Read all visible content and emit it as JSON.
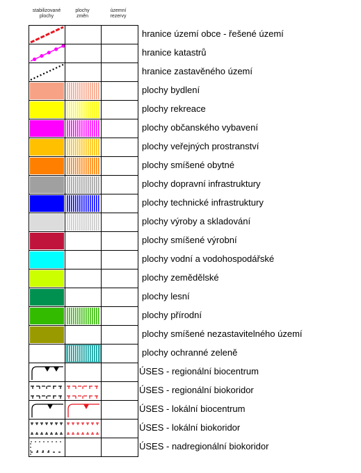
{
  "columns": [
    {
      "line1": "stabilizované",
      "line2": "plochy"
    },
    {
      "line1": "plochy",
      "line2": "změn"
    },
    {
      "line1": "územní",
      "line2": "rezervy"
    }
  ],
  "rows": [
    {
      "label": "hranice území obce - řešené území",
      "stab": {
        "type": "line",
        "color": "#e8151f",
        "style": "dash"
      },
      "change": null
    },
    {
      "label": "hranice katastrů",
      "stab": {
        "type": "line",
        "color": "#ff00ff",
        "style": "dots"
      },
      "change": null
    },
    {
      "label": "hranice zastavěného území",
      "stab": {
        "type": "line",
        "color": "#000000",
        "style": "dotted"
      },
      "change": null
    },
    {
      "label": "plochy bydlení",
      "stab": {
        "type": "fill",
        "color": "#f8a285"
      },
      "change": {
        "type": "stripe",
        "color": "#f8a285"
      }
    },
    {
      "label": "plochy rekreace",
      "stab": {
        "type": "fill",
        "color": "#ffff00"
      },
      "change": {
        "type": "stripe",
        "color": "#ffff00"
      }
    },
    {
      "label": "plochy občanského vybavení",
      "stab": {
        "type": "fill",
        "color": "#ff00ff"
      },
      "change": {
        "type": "stripe",
        "color": "#ff00ff"
      }
    },
    {
      "label": "plochy veřejných prostranství",
      "stab": {
        "type": "fill",
        "color": "#ffc000"
      },
      "change": {
        "type": "stripe",
        "color": "#ffc000"
      }
    },
    {
      "label": "plochy smíšené obytné",
      "stab": {
        "type": "fill",
        "color": "#ff8000"
      },
      "change": {
        "type": "stripe",
        "color": "#ff8000"
      }
    },
    {
      "label": "plochy dopravní infrastruktury",
      "stab": {
        "type": "fill",
        "color": "#a0a0a0"
      },
      "change": {
        "type": "stripe",
        "color": "#a0a0a0"
      }
    },
    {
      "label": "plochy technické infrastruktury",
      "stab": {
        "type": "fill",
        "color": "#0000ff"
      },
      "change": {
        "type": "stripe",
        "color": "#0000ff"
      }
    },
    {
      "label": "plochy výroby a skladování",
      "stab": {
        "type": "fill",
        "color": "#dcdcdc"
      },
      "change": {
        "type": "stripe",
        "color": "#c8c8c8"
      }
    },
    {
      "label": "plochy smíšené výrobní",
      "stab": {
        "type": "fill",
        "color": "#c0143c"
      },
      "change": null
    },
    {
      "label": "plochy vodní a vodohospodářské",
      "stab": {
        "type": "fill",
        "color": "#00ffff"
      },
      "change": null
    },
    {
      "label": "plochy zemědělské",
      "stab": {
        "type": "fill",
        "color": "#ccff00"
      },
      "change": null
    },
    {
      "label": "plochy lesní",
      "stab": {
        "type": "fill",
        "color": "#009050"
      },
      "change": null
    },
    {
      "label": "plochy přírodní",
      "stab": {
        "type": "fill",
        "color": "#33bb00"
      },
      "change": {
        "type": "stripe",
        "color": "#33bb00"
      }
    },
    {
      "label": "plochy smíšené nezastavitelného území",
      "stab": {
        "type": "fill",
        "color": "#999900"
      },
      "change": null
    },
    {
      "label": "plochy ochranné zeleně",
      "stab": null,
      "change": {
        "type": "stripe",
        "color": "#009999",
        "outline": "#009999"
      }
    },
    {
      "label": "ÚSES - regionální biocentrum",
      "stab": {
        "type": "symbol",
        "kind": "biocentrum",
        "color": "#000000",
        "teeth": 2
      },
      "change": null
    },
    {
      "label": "ÚSES - regionální biokoridor",
      "stab": {
        "type": "symbol",
        "kind": "biokoridor",
        "color": "#000000"
      },
      "change": {
        "type": "symbol",
        "kind": "biokoridor",
        "color": "#e8151f"
      }
    },
    {
      "label": "ÚSES - lokální biocentrum",
      "stab": {
        "type": "symbol",
        "kind": "biocentrum",
        "color": "#000000",
        "teeth": 1
      },
      "change": {
        "type": "symbol",
        "kind": "biocentrum",
        "color": "#e8151f",
        "teeth": 1
      }
    },
    {
      "label": "ÚSES - lokální biokoridor",
      "stab": {
        "type": "symbol",
        "kind": "biokoridor-local",
        "color": "#000000"
      },
      "change": {
        "type": "symbol",
        "kind": "biokoridor-local",
        "color": "#e8151f"
      }
    },
    {
      "label": "ÚSES - nadregionální biokoridor",
      "stab": {
        "type": "symbol",
        "kind": "biokoridor-nadreg",
        "color": "#000000"
      },
      "change": null
    }
  ]
}
